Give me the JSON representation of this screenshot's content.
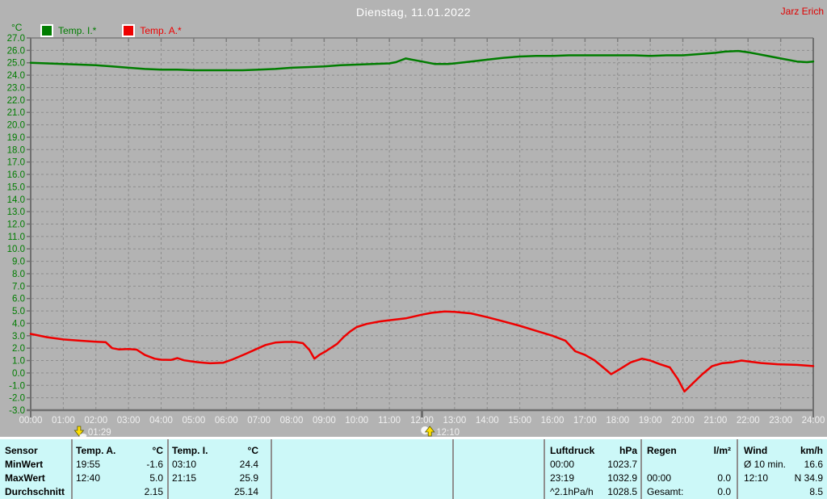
{
  "header": {
    "title": "Dienstag, 11.01.2022",
    "watermark": "Jarz Erich"
  },
  "legend": {
    "unit_label": "°C",
    "series": [
      {
        "label": "Temp. I.*",
        "color": "#007d00"
      },
      {
        "label": "Temp. A.*",
        "color": "#ee0000"
      }
    ]
  },
  "chart_data": {
    "type": "line",
    "title": "Dienstag, 11.01.2022",
    "ylabel": "°C",
    "ylim": [
      -3,
      27
    ],
    "ytick_step": 1,
    "xlim_hours": [
      0,
      24
    ],
    "xtick_step_hours": 1,
    "grid": true,
    "legend_position": "top-left",
    "series": [
      {
        "name": "Temp. I.*",
        "color": "#007d00",
        "points": [
          [
            0,
            25.0
          ],
          [
            0.5,
            24.95
          ],
          [
            1,
            24.9
          ],
          [
            1.5,
            24.85
          ],
          [
            2,
            24.8
          ],
          [
            2.5,
            24.7
          ],
          [
            3,
            24.6
          ],
          [
            3.5,
            24.5
          ],
          [
            4,
            24.45
          ],
          [
            4.5,
            24.45
          ],
          [
            5,
            24.4
          ],
          [
            5.5,
            24.4
          ],
          [
            6,
            24.4
          ],
          [
            6.5,
            24.4
          ],
          [
            7,
            24.45
          ],
          [
            7.5,
            24.5
          ],
          [
            8,
            24.6
          ],
          [
            8.5,
            24.65
          ],
          [
            9,
            24.7
          ],
          [
            9.5,
            24.8
          ],
          [
            10,
            24.85
          ],
          [
            10.5,
            24.9
          ],
          [
            11,
            24.95
          ],
          [
            11.2,
            25.05
          ],
          [
            11.5,
            25.35
          ],
          [
            11.8,
            25.2
          ],
          [
            12,
            25.1
          ],
          [
            12.4,
            24.9
          ],
          [
            12.8,
            24.9
          ],
          [
            13,
            24.95
          ],
          [
            13.5,
            25.1
          ],
          [
            14,
            25.25
          ],
          [
            14.5,
            25.4
          ],
          [
            15,
            25.5
          ],
          [
            15.5,
            25.55
          ],
          [
            16,
            25.55
          ],
          [
            16.5,
            25.6
          ],
          [
            17,
            25.6
          ],
          [
            17.5,
            25.6
          ],
          [
            18,
            25.6
          ],
          [
            18.5,
            25.6
          ],
          [
            19,
            25.55
          ],
          [
            19.5,
            25.6
          ],
          [
            20,
            25.6
          ],
          [
            20.5,
            25.7
          ],
          [
            21,
            25.8
          ],
          [
            21.3,
            25.9
          ],
          [
            21.7,
            25.95
          ],
          [
            22,
            25.85
          ],
          [
            22.5,
            25.6
          ],
          [
            23,
            25.35
          ],
          [
            23.5,
            25.1
          ],
          [
            23.8,
            25.05
          ],
          [
            24,
            25.1
          ]
        ]
      },
      {
        "name": "Temp. A.*",
        "color": "#ee0000",
        "points": [
          [
            0,
            3.15
          ],
          [
            0.5,
            2.88
          ],
          [
            1,
            2.7
          ],
          [
            1.5,
            2.6
          ],
          [
            2,
            2.52
          ],
          [
            2.3,
            2.48
          ],
          [
            2.5,
            2.0
          ],
          [
            2.7,
            1.9
          ],
          [
            3,
            1.93
          ],
          [
            3.25,
            1.88
          ],
          [
            3.5,
            1.45
          ],
          [
            3.8,
            1.15
          ],
          [
            4,
            1.07
          ],
          [
            4.3,
            1.05
          ],
          [
            4.5,
            1.2
          ],
          [
            4.7,
            1.02
          ],
          [
            5.1,
            0.87
          ],
          [
            5.5,
            0.78
          ],
          [
            5.9,
            0.82
          ],
          [
            6.2,
            1.1
          ],
          [
            6.6,
            1.55
          ],
          [
            6.9,
            1.9
          ],
          [
            7.2,
            2.25
          ],
          [
            7.5,
            2.45
          ],
          [
            7.8,
            2.5
          ],
          [
            8.1,
            2.5
          ],
          [
            8.35,
            2.4
          ],
          [
            8.55,
            1.85
          ],
          [
            8.7,
            1.15
          ],
          [
            8.85,
            1.45
          ],
          [
            9.05,
            1.75
          ],
          [
            9.4,
            2.35
          ],
          [
            9.6,
            2.9
          ],
          [
            9.8,
            3.35
          ],
          [
            10,
            3.7
          ],
          [
            10.3,
            3.95
          ],
          [
            10.7,
            4.15
          ],
          [
            11,
            4.25
          ],
          [
            11.5,
            4.4
          ],
          [
            12,
            4.7
          ],
          [
            12.3,
            4.85
          ],
          [
            12.7,
            4.95
          ],
          [
            13,
            4.92
          ],
          [
            13.5,
            4.8
          ],
          [
            14,
            4.5
          ],
          [
            14.5,
            4.15
          ],
          [
            15,
            3.8
          ],
          [
            15.5,
            3.4
          ],
          [
            16,
            3.0
          ],
          [
            16.4,
            2.6
          ],
          [
            16.7,
            1.75
          ],
          [
            17,
            1.45
          ],
          [
            17.3,
            1.0
          ],
          [
            17.6,
            0.35
          ],
          [
            17.8,
            -0.1
          ],
          [
            18,
            0.2
          ],
          [
            18.4,
            0.85
          ],
          [
            18.75,
            1.15
          ],
          [
            19,
            1.0
          ],
          [
            19.3,
            0.7
          ],
          [
            19.6,
            0.45
          ],
          [
            19.85,
            -0.5
          ],
          [
            20.05,
            -1.5
          ],
          [
            20.3,
            -0.85
          ],
          [
            20.6,
            -0.1
          ],
          [
            20.9,
            0.55
          ],
          [
            21.2,
            0.78
          ],
          [
            21.5,
            0.85
          ],
          [
            21.8,
            1.0
          ],
          [
            22.1,
            0.9
          ],
          [
            22.4,
            0.8
          ],
          [
            22.9,
            0.7
          ],
          [
            23.5,
            0.65
          ],
          [
            24,
            0.55
          ]
        ]
      }
    ],
    "annotations": [
      {
        "label": "01:29",
        "hour": 1.4833,
        "icon": "moonset"
      },
      {
        "label": "12:10",
        "hour": 12.1667,
        "icon": "moonrise"
      }
    ],
    "noon_marker_hour": 12
  },
  "stats_table": {
    "header_row_label": "Sensor",
    "row_labels": [
      "MinWert",
      "MaxWert",
      "Durchschnitt"
    ],
    "groups": [
      {
        "name": "Temp. A.",
        "unit": "°C",
        "rows": [
          [
            "19:55",
            "-1.6"
          ],
          [
            "12:40",
            "5.0"
          ],
          [
            "",
            "2.15"
          ]
        ]
      },
      {
        "name": "Temp. I.",
        "unit": "°C",
        "rows": [
          [
            "03:10",
            "24.4"
          ],
          [
            "21:15",
            "25.9"
          ],
          [
            "",
            "25.14"
          ]
        ]
      },
      {
        "name": "",
        "unit": "",
        "rows": [
          [
            "",
            ""
          ],
          [
            "",
            ""
          ],
          [
            "",
            ""
          ]
        ]
      },
      {
        "name": "",
        "unit": "",
        "rows": [
          [
            "",
            ""
          ],
          [
            "",
            ""
          ],
          [
            "",
            ""
          ]
        ]
      },
      {
        "name": "Luftdruck",
        "unit": "hPa",
        "rows": [
          [
            "00:00",
            "1023.7"
          ],
          [
            "23:19",
            "1032.9"
          ],
          [
            "^2.1hPa/h",
            "1028.5"
          ]
        ]
      },
      {
        "name": "Regen",
        "unit": "l/m²",
        "rows": [
          [
            "",
            ""
          ],
          [
            "00:00",
            "0.0"
          ],
          [
            "Gesamt:",
            "0.0"
          ]
        ]
      },
      {
        "name": "Wind",
        "unit": "km/h",
        "rows": [
          [
            "Ø 10 min.",
            "16.6"
          ],
          [
            "12:10",
            "N 34.9"
          ],
          [
            "",
            "8.5"
          ]
        ]
      }
    ]
  }
}
